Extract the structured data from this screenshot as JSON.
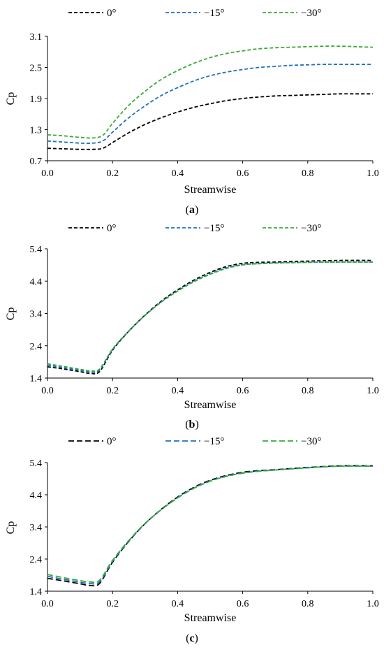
{
  "figure": {
    "panels": [
      {
        "caption_letter": "a"
      },
      {
        "caption_letter": "b"
      },
      {
        "caption_letter": "c"
      }
    ]
  },
  "chart_data": [
    {
      "type": "line",
      "panel": "a",
      "xlabel": "Streamwise",
      "ylabel": "Cp",
      "xlim": [
        0.0,
        1.0
      ],
      "ylim": [
        0.7,
        3.1
      ],
      "xticks": [
        "0.0",
        "0.2",
        "0.4",
        "0.6",
        "0.8",
        "1.0"
      ],
      "yticks": [
        "0.7",
        "1.3",
        "1.9",
        "2.5",
        "3.1"
      ],
      "grid": false,
      "legend_position": "top",
      "colors": {
        "0°": "#000000",
        "−15°": "#1f6fbf",
        "−30°": "#3aaa35"
      },
      "series": [
        {
          "name": "0°",
          "x": [
            0,
            0.05,
            0.1,
            0.14,
            0.17,
            0.2,
            0.25,
            0.3,
            0.35,
            0.4,
            0.45,
            0.5,
            0.55,
            0.6,
            0.65,
            0.7,
            0.75,
            0.8,
            0.85,
            0.9,
            0.95,
            1.0
          ],
          "values": [
            0.94,
            0.93,
            0.92,
            0.92,
            0.94,
            1.05,
            1.24,
            1.4,
            1.53,
            1.64,
            1.73,
            1.8,
            1.86,
            1.9,
            1.93,
            1.95,
            1.96,
            1.97,
            1.98,
            1.99,
            1.99,
            1.99
          ]
        },
        {
          "name": "−15°",
          "x": [
            0,
            0.05,
            0.1,
            0.14,
            0.17,
            0.2,
            0.25,
            0.3,
            0.35,
            0.4,
            0.45,
            0.5,
            0.55,
            0.6,
            0.65,
            0.7,
            0.75,
            0.8,
            0.85,
            0.9,
            0.95,
            1.0
          ],
          "values": [
            1.08,
            1.06,
            1.04,
            1.04,
            1.08,
            1.25,
            1.53,
            1.76,
            1.96,
            2.11,
            2.24,
            2.34,
            2.41,
            2.46,
            2.5,
            2.52,
            2.54,
            2.55,
            2.56,
            2.56,
            2.56,
            2.56
          ]
        },
        {
          "name": "−30°",
          "x": [
            0,
            0.05,
            0.1,
            0.14,
            0.17,
            0.2,
            0.25,
            0.3,
            0.35,
            0.4,
            0.45,
            0.5,
            0.55,
            0.6,
            0.65,
            0.7,
            0.75,
            0.8,
            0.85,
            0.9,
            0.95,
            1.0
          ],
          "values": [
            1.2,
            1.18,
            1.15,
            1.14,
            1.19,
            1.42,
            1.77,
            2.04,
            2.27,
            2.44,
            2.58,
            2.69,
            2.77,
            2.82,
            2.86,
            2.88,
            2.89,
            2.9,
            2.91,
            2.91,
            2.9,
            2.89
          ]
        }
      ]
    },
    {
      "type": "line",
      "panel": "b",
      "xlabel": "Streamwise",
      "ylabel": "Cp",
      "xlim": [
        0.0,
        1.0
      ],
      "ylim": [
        1.4,
        5.4
      ],
      "xticks": [
        "0.0",
        "0.2",
        "0.4",
        "0.6",
        "0.8",
        "1.0"
      ],
      "yticks": [
        "1.4",
        "2.4",
        "3.4",
        "4.4",
        "5.4"
      ],
      "grid": false,
      "legend_position": "top",
      "colors": {
        "0°": "#000000",
        "−15°": "#1f6fbf",
        "−30°": "#3aaa35"
      },
      "series": [
        {
          "name": "0°",
          "x": [
            0,
            0.05,
            0.1,
            0.13,
            0.16,
            0.2,
            0.25,
            0.3,
            0.35,
            0.4,
            0.45,
            0.5,
            0.55,
            0.6,
            0.65,
            0.7,
            0.8,
            0.9,
            1.0
          ],
          "values": [
            1.75,
            1.68,
            1.6,
            1.55,
            1.6,
            2.26,
            2.85,
            3.35,
            3.78,
            4.13,
            4.43,
            4.67,
            4.85,
            4.95,
            4.98,
            4.99,
            5.02,
            5.04,
            5.04
          ]
        },
        {
          "name": "−15°",
          "x": [
            0,
            0.05,
            0.1,
            0.13,
            0.16,
            0.2,
            0.25,
            0.3,
            0.35,
            0.4,
            0.45,
            0.5,
            0.55,
            0.6,
            0.65,
            0.7,
            0.8,
            0.9,
            1.0
          ],
          "values": [
            1.8,
            1.72,
            1.64,
            1.6,
            1.64,
            2.28,
            2.85,
            3.34,
            3.76,
            4.1,
            4.4,
            4.63,
            4.81,
            4.91,
            4.94,
            4.96,
            4.98,
            4.99,
            4.99
          ]
        },
        {
          "name": "−30°",
          "x": [
            0,
            0.05,
            0.1,
            0.13,
            0.16,
            0.2,
            0.25,
            0.3,
            0.35,
            0.4,
            0.45,
            0.5,
            0.55,
            0.6,
            0.65,
            0.7,
            0.8,
            0.9,
            1.0
          ],
          "values": [
            1.84,
            1.76,
            1.67,
            1.63,
            1.68,
            2.3,
            2.86,
            3.34,
            3.75,
            4.09,
            4.38,
            4.61,
            4.79,
            4.9,
            4.94,
            4.96,
            4.98,
            4.99,
            4.99
          ]
        }
      ]
    },
    {
      "type": "line",
      "panel": "c",
      "xlabel": "Streamwise",
      "ylabel": "Cp",
      "xlim": [
        0.0,
        1.0
      ],
      "ylim": [
        1.4,
        5.4
      ],
      "xticks": [
        "0.0",
        "0.2",
        "0.4",
        "0.6",
        "0.8",
        "1.0"
      ],
      "yticks": [
        "1.4",
        "2.4",
        "3.4",
        "4.4",
        "5.4"
      ],
      "grid": false,
      "legend_position": "top",
      "colors": {
        "0°": "#000000",
        "−15°": "#1f6fbf",
        "−30°": "#3aaa35"
      },
      "series": [
        {
          "name": "0°",
          "x": [
            0,
            0.05,
            0.1,
            0.13,
            0.16,
            0.2,
            0.25,
            0.3,
            0.35,
            0.4,
            0.45,
            0.5,
            0.55,
            0.6,
            0.65,
            0.7,
            0.8,
            0.9,
            1.0
          ],
          "values": [
            1.8,
            1.72,
            1.63,
            1.58,
            1.64,
            2.3,
            2.95,
            3.5,
            3.95,
            4.33,
            4.63,
            4.85,
            5.0,
            5.1,
            5.15,
            5.18,
            5.25,
            5.3,
            5.3
          ]
        },
        {
          "name": "−15°",
          "x": [
            0,
            0.05,
            0.1,
            0.13,
            0.16,
            0.2,
            0.25,
            0.3,
            0.35,
            0.4,
            0.45,
            0.5,
            0.55,
            0.6,
            0.65,
            0.7,
            0.8,
            0.9,
            1.0
          ],
          "values": [
            1.86,
            1.77,
            1.68,
            1.64,
            1.69,
            2.33,
            2.96,
            3.5,
            3.94,
            4.31,
            4.61,
            4.83,
            4.98,
            5.08,
            5.14,
            5.17,
            5.24,
            5.29,
            5.29
          ]
        },
        {
          "name": "−30°",
          "x": [
            0,
            0.05,
            0.1,
            0.13,
            0.16,
            0.2,
            0.25,
            0.3,
            0.35,
            0.4,
            0.45,
            0.5,
            0.55,
            0.6,
            0.65,
            0.7,
            0.8,
            0.9,
            1.0
          ],
          "values": [
            1.92,
            1.82,
            1.73,
            1.69,
            1.74,
            2.36,
            2.98,
            3.51,
            3.94,
            4.3,
            4.6,
            4.82,
            4.97,
            5.07,
            5.13,
            5.17,
            5.24,
            5.29,
            5.29
          ]
        }
      ]
    }
  ]
}
